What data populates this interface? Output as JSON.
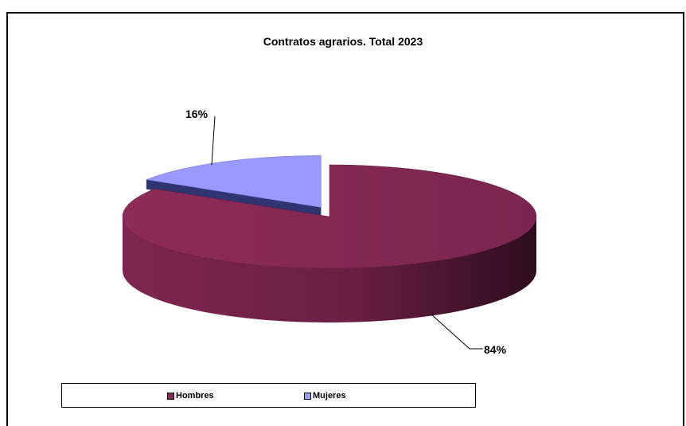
{
  "chart_data": {
    "type": "pie",
    "title": "Contratos agrarios. Total 2023",
    "categories": [
      "Hombres",
      "Mujeres"
    ],
    "values": [
      84,
      16
    ],
    "data_labels": [
      "84%",
      "16%"
    ],
    "colors": [
      "#8b2a56",
      "#9999ff"
    ],
    "legend_position": "bottom",
    "three_d": true,
    "exploded": "Mujeres"
  }
}
